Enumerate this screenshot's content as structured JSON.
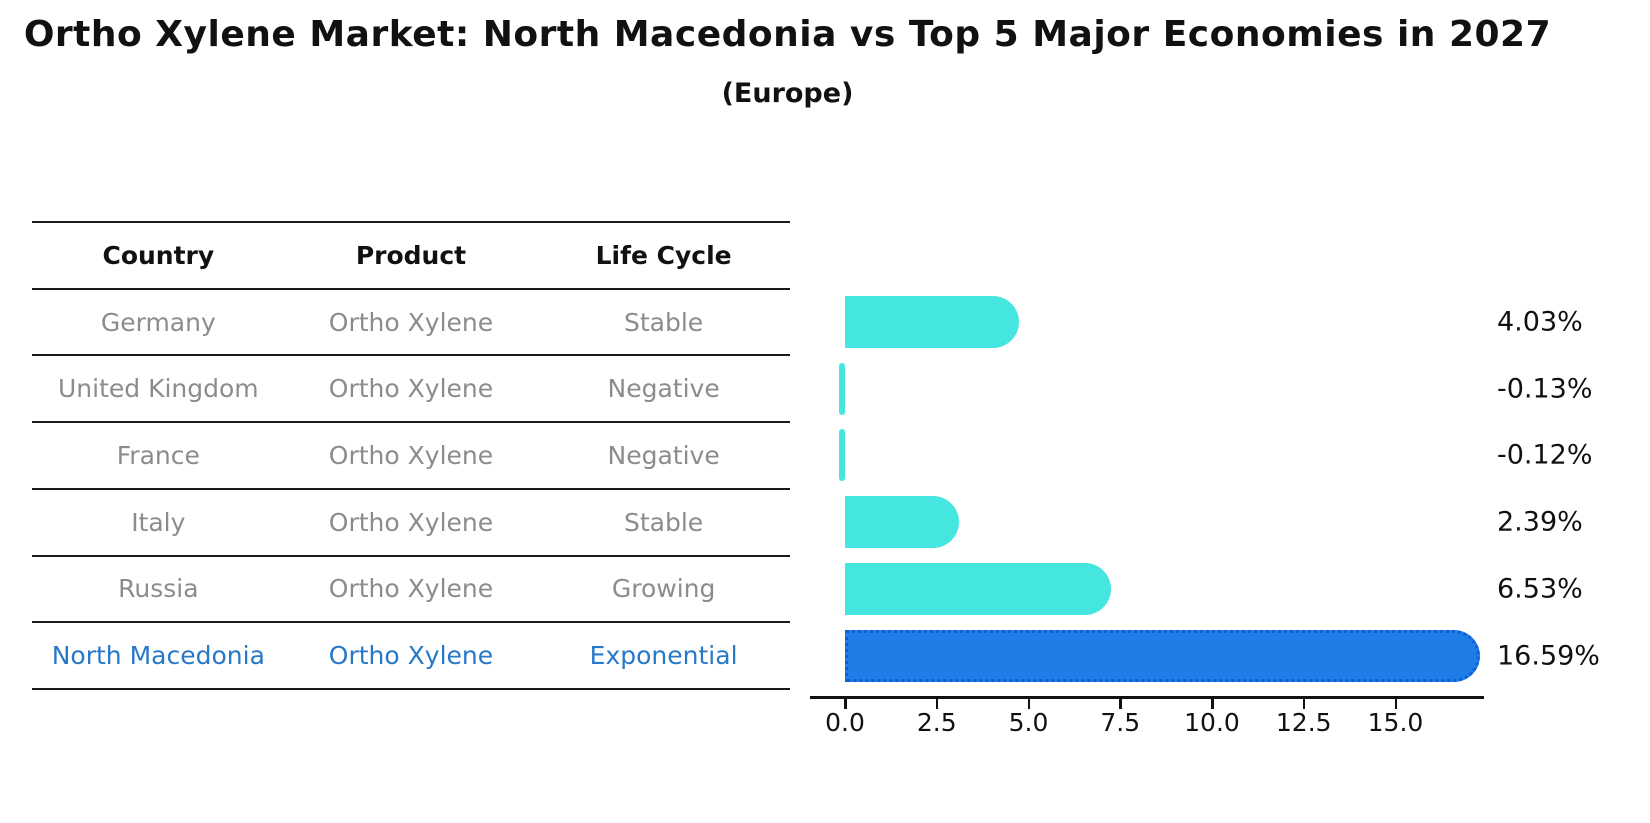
{
  "title": "Ortho Xylene Market: North Macedonia vs Top 5 Major Economies in 2027",
  "subtitle": "(Europe)",
  "table": {
    "columns": [
      "Country",
      "Product",
      "Life Cycle"
    ],
    "rows": [
      {
        "country": "Germany",
        "product": "Ortho Xylene",
        "life_cycle": "Stable",
        "highlight": false
      },
      {
        "country": "United Kingdom",
        "product": "Ortho Xylene",
        "life_cycle": "Negative",
        "highlight": false
      },
      {
        "country": "France",
        "product": "Ortho Xylene",
        "life_cycle": "Negative",
        "highlight": false
      },
      {
        "country": "Italy",
        "product": "Ortho Xylene",
        "life_cycle": "Stable",
        "highlight": false
      },
      {
        "country": "Russia",
        "product": "Ortho Xylene",
        "life_cycle": "Growing",
        "highlight": false
      },
      {
        "country": "North Macedonia",
        "product": "Ortho Xylene",
        "life_cycle": "Exponential",
        "highlight": true
      }
    ],
    "text_color": "#8c8c8c",
    "highlight_text_color": "#2878c8"
  },
  "chart_data": {
    "type": "bar",
    "orientation": "horizontal",
    "title": "Ortho Xylene Market: North Macedonia vs Top 5 Major Economies in 2027",
    "subtitle": "(Europe)",
    "categories": [
      "Germany",
      "United Kingdom",
      "France",
      "Italy",
      "Russia",
      "North Macedonia"
    ],
    "values": [
      4.03,
      -0.13,
      -0.12,
      2.39,
      6.53,
      16.59
    ],
    "value_labels": [
      "4.03%",
      "-0.13%",
      "-0.12%",
      "2.39%",
      "6.53%",
      "16.59%"
    ],
    "xtick_labels": [
      "0.0",
      "2.5",
      "5.0",
      "7.5",
      "10.0",
      "12.5",
      "15.0"
    ],
    "xticks": [
      0.0,
      2.5,
      5.0,
      7.5,
      10.0,
      12.5,
      15.0
    ],
    "xlim": [
      -0.95,
      17.4
    ],
    "bar_color": "#45e6df",
    "highlight_color": "#1f7de8",
    "highlight_index": 5,
    "grid": false,
    "legend": false
  }
}
